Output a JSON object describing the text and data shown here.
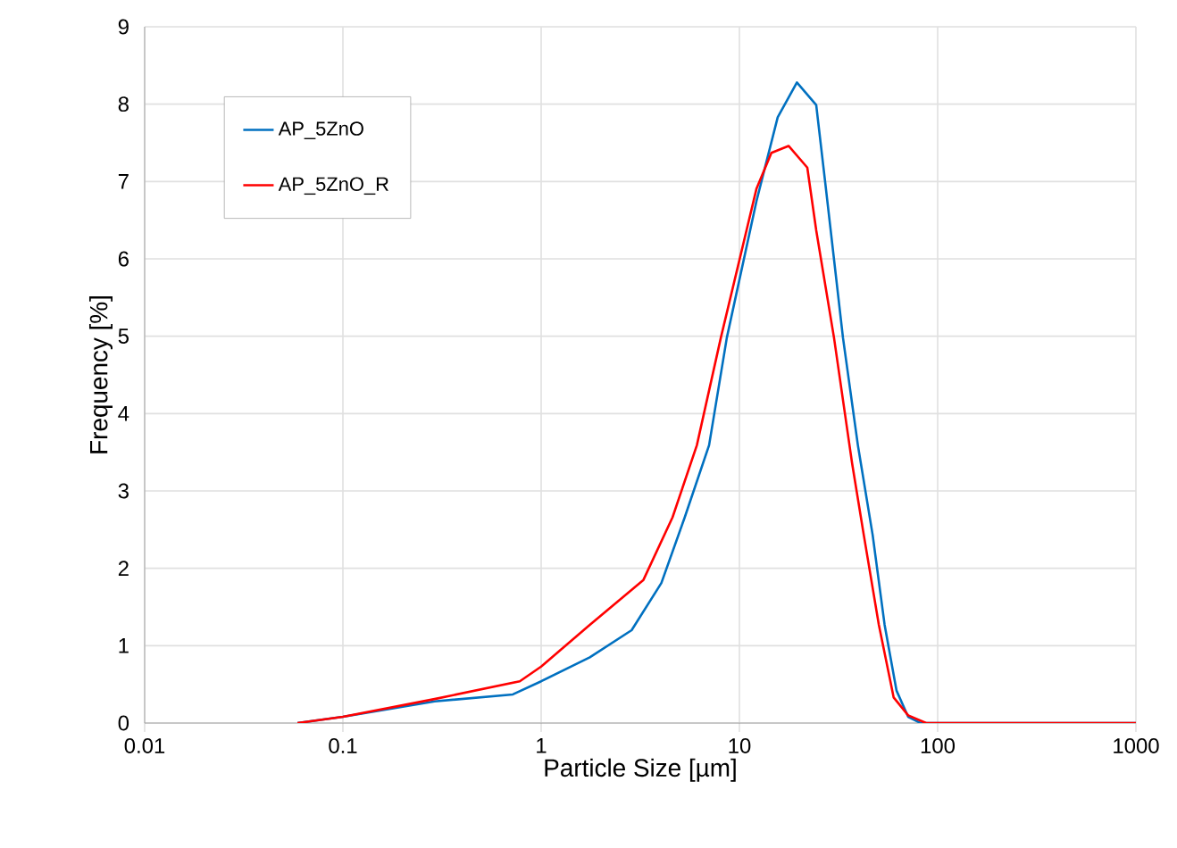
{
  "chart_data": {
    "type": "line",
    "xlabel": "Particle Size [µm]",
    "ylabel": "Frequency [%]",
    "log": "x",
    "xlim": [
      0.01,
      1000
    ],
    "xticks": [
      0.01,
      0.1,
      1,
      10,
      100,
      1000
    ],
    "ylim": [
      0,
      9
    ],
    "yticks": [
      0,
      1,
      2,
      3,
      4,
      5,
      6,
      7,
      8,
      9
    ],
    "grid": true,
    "legend": "top left",
    "marker": "none",
    "line_style": "solid",
    "series": [
      {
        "name": "AP_5ZnO",
        "color": "#0070c0",
        "x": [
          0.059,
          0.1,
          0.29,
          0.72,
          1,
          1.76,
          2.86,
          4.04,
          5.3,
          7.03,
          8.64,
          12.2,
          15.6,
          19.5,
          24.4,
          27,
          33.3,
          39.6,
          47,
          54,
          62,
          71,
          82,
          100,
          1000
        ],
        "values": [
          0,
          0.08,
          0.28,
          0.37,
          0.54,
          0.85,
          1.2,
          1.81,
          2.66,
          3.59,
          4.98,
          6.75,
          7.83,
          8.28,
          7.99,
          7.02,
          4.98,
          3.59,
          2.43,
          1.27,
          0.42,
          0.08,
          0,
          0,
          0
        ]
      },
      {
        "name": "AP_5ZnO_R",
        "color": "#ff0000",
        "x": [
          0.059,
          0.1,
          0.29,
          0.78,
          1,
          1.76,
          3.28,
          4.6,
          6.1,
          8.06,
          12.2,
          14.5,
          17.7,
          22,
          24.4,
          30,
          37,
          42.4,
          50.5,
          60,
          71,
          87.5,
          100,
          1000
        ],
        "values": [
          0,
          0.08,
          0.31,
          0.54,
          0.73,
          1.27,
          1.85,
          2.66,
          3.59,
          4.98,
          6.91,
          7.37,
          7.46,
          7.18,
          6.37,
          4.98,
          3.36,
          2.43,
          1.27,
          0.33,
          0.1,
          0,
          0,
          0
        ]
      }
    ]
  }
}
